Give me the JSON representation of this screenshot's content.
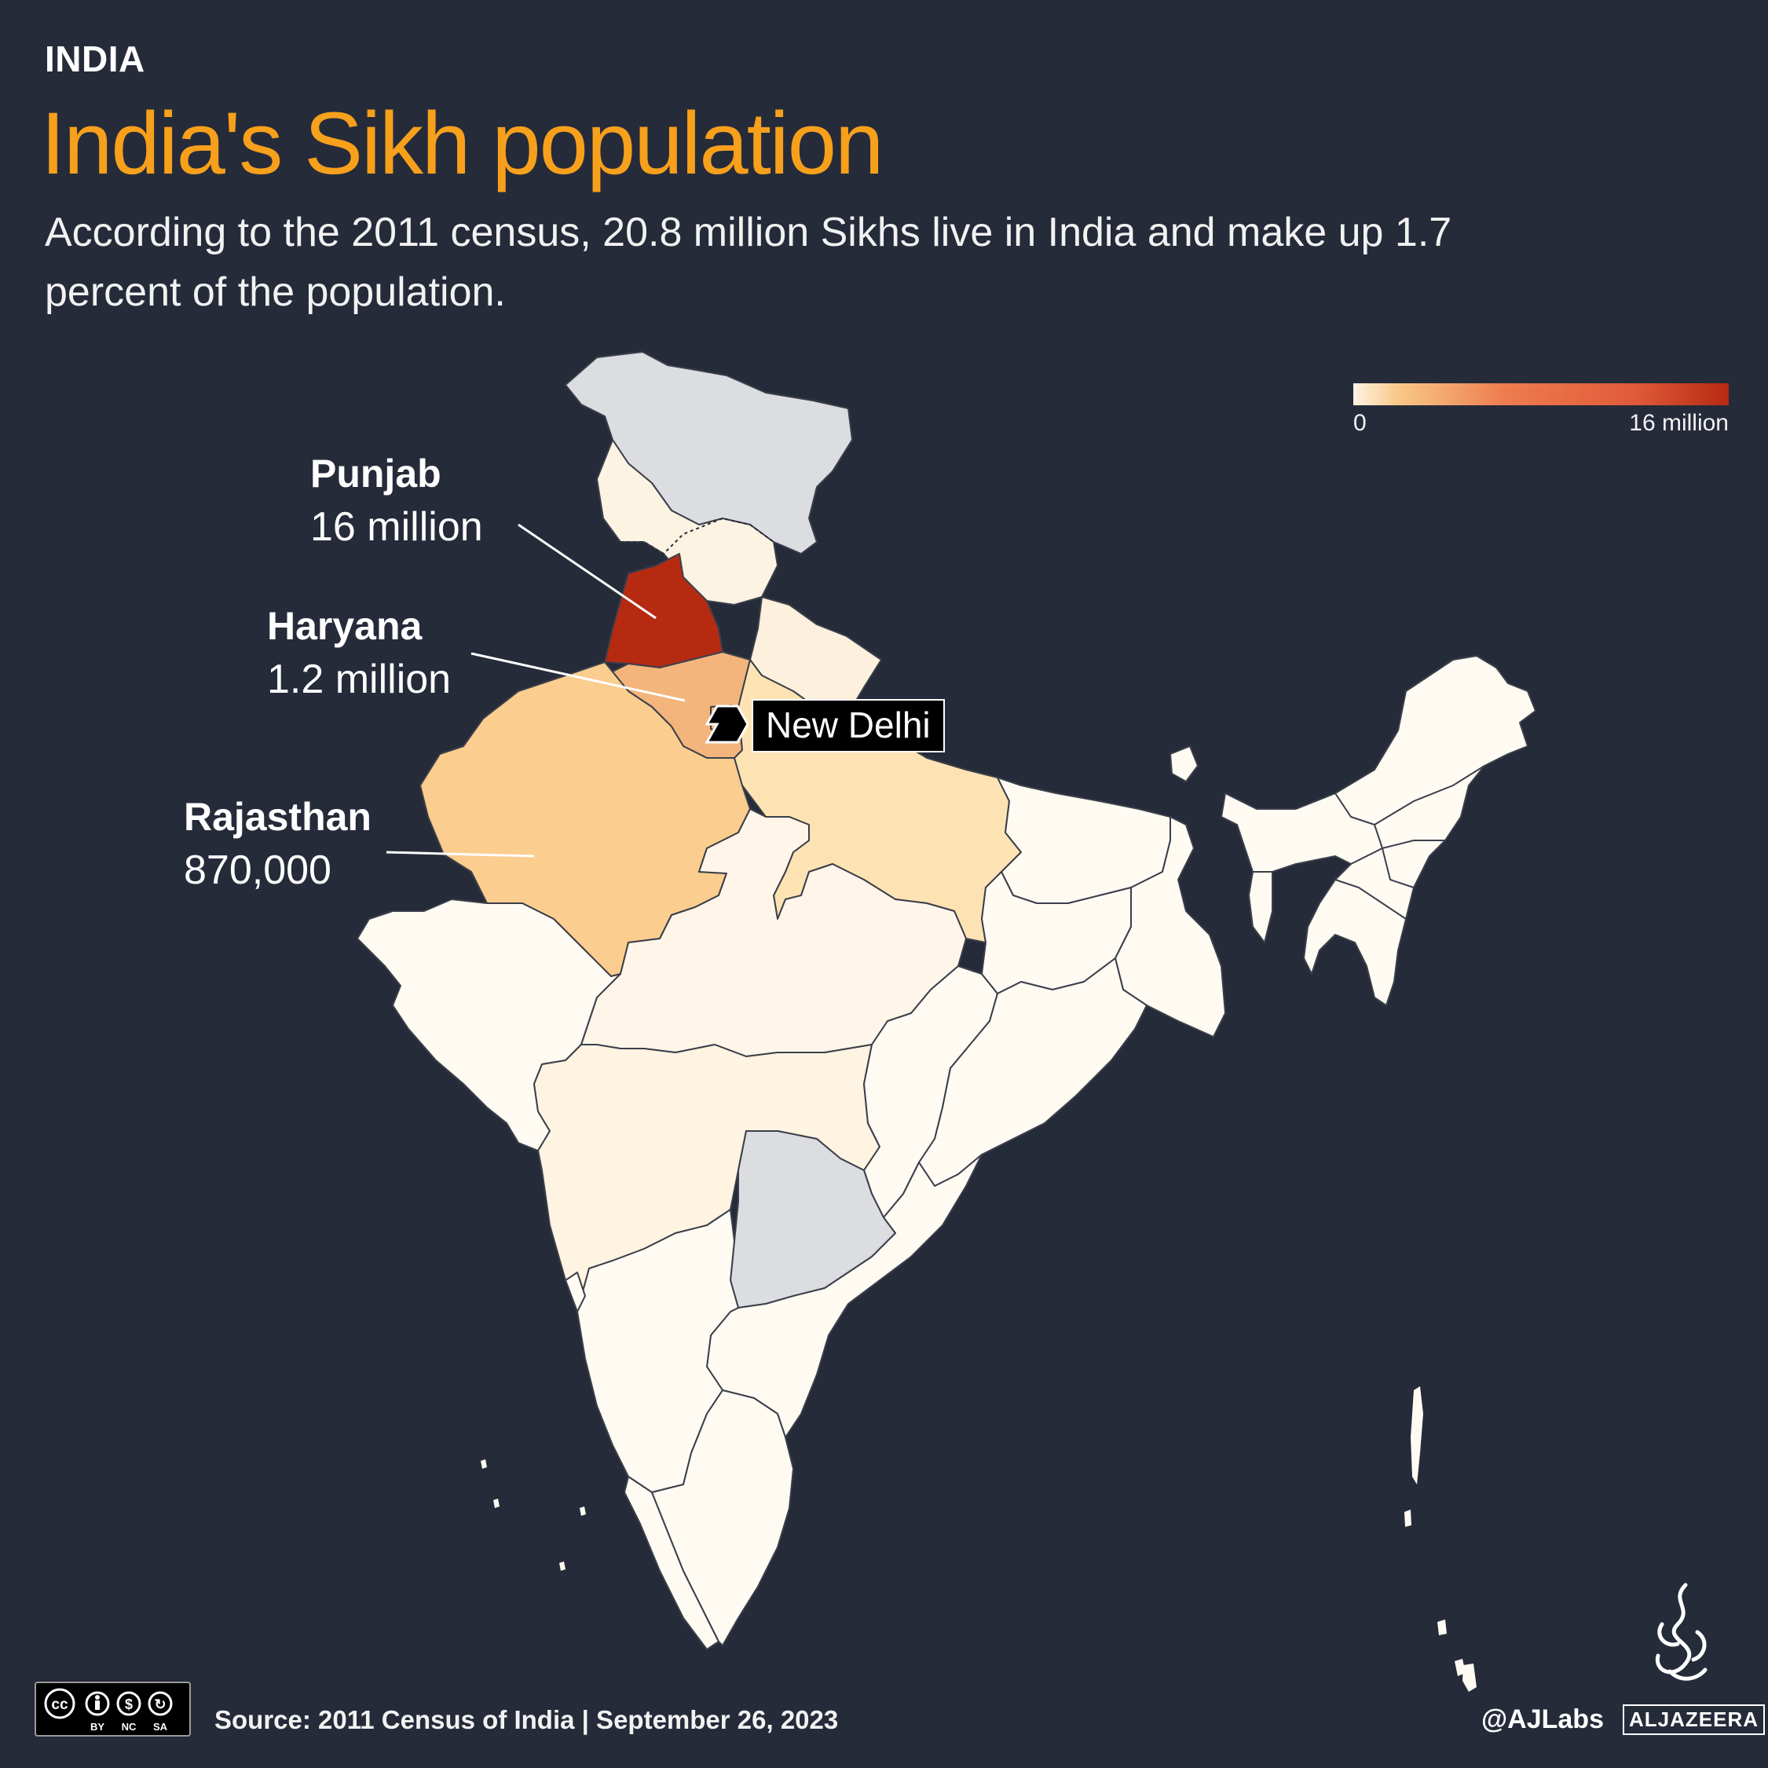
{
  "header": {
    "kicker": "INDIA",
    "title": "India's Sikh population",
    "subtitle": "According to the 2011 census, 20.8 million Sikhs live in India and make up 1.7 percent of the population."
  },
  "legend": {
    "min_label": "0",
    "max_label": "16 million",
    "colors": [
      "#fff4e4",
      "#f8c887",
      "#ee7d4f",
      "#b62a12"
    ]
  },
  "callouts": [
    {
      "name": "Punjab",
      "value": "16 million"
    },
    {
      "name": "Haryana",
      "value": "1.2 million"
    },
    {
      "name": "Rajasthan",
      "value": "870,000"
    }
  ],
  "capital": {
    "label": "New Delhi",
    "icon": "hexagon-marker-icon"
  },
  "map": {
    "region_colors": {
      "punjab": "#b62a12",
      "haryana": "#f3b57b",
      "rajasthan": "#fbcd8e",
      "uttar_pradesh": "#fde3b3",
      "uttarakhand": "#fdf0dc",
      "himachal_pradesh": "#fdf3e3",
      "low_value": "#fffbf3",
      "no_data": "#dcdde1"
    }
  },
  "footer": {
    "source": "Source:  2011 Census of India   |  September 26, 2023",
    "license_icons": "cc-by-nc-sa-icon",
    "license_labels": [
      "BY",
      "NC",
      "SA"
    ],
    "handle": "@AJLabs",
    "brand": "ALJAZEERA"
  }
}
